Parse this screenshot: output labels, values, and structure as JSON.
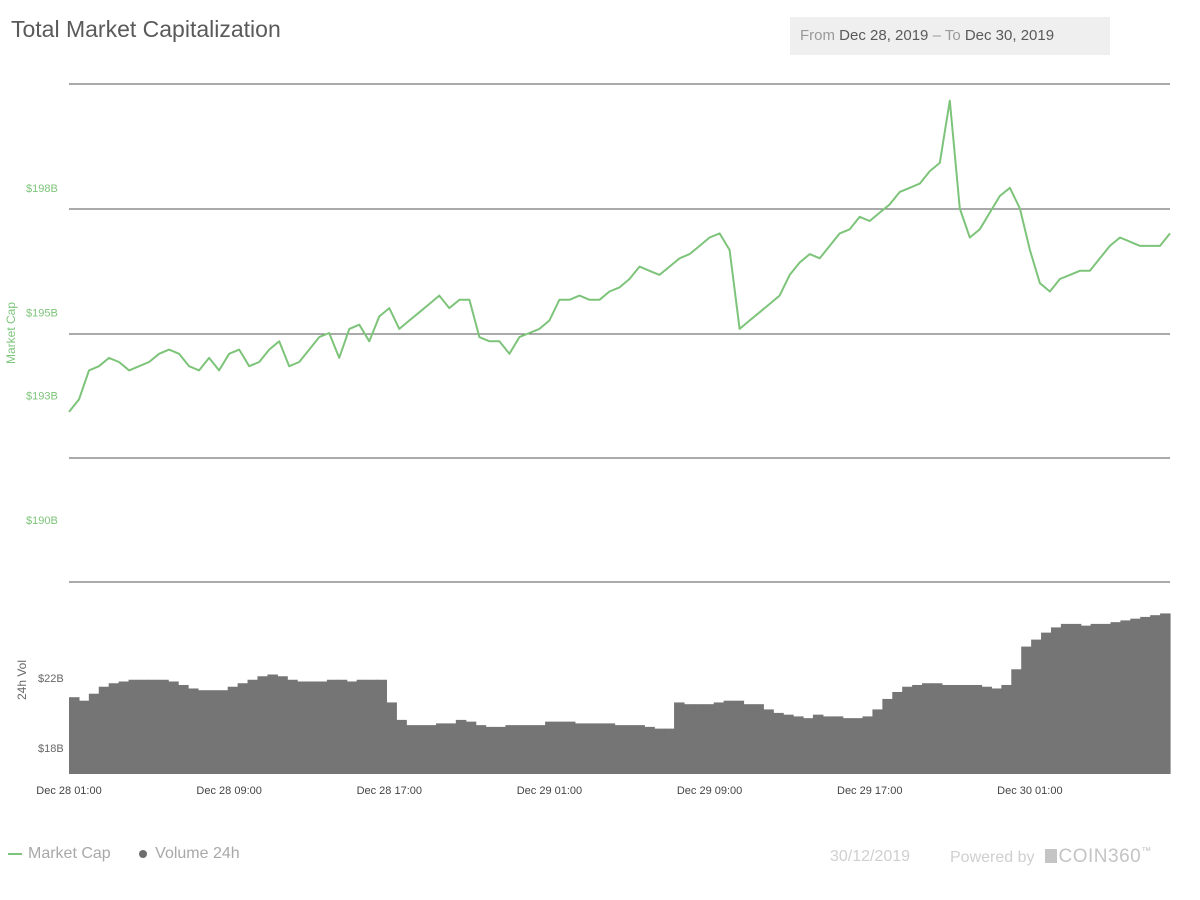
{
  "header": {
    "title": "Total Market Capitalization",
    "from_label": "From",
    "from_value": "Dec 28, 2019",
    "separator": "–",
    "to_label": "To",
    "to_value": "Dec 30, 2019"
  },
  "footer": {
    "date": "30/12/2019",
    "powered_by": "Powered by",
    "brand": "COIN360",
    "tm": "™"
  },
  "colors": {
    "market_cap_line": "#7dc47a",
    "volume_bars": "#757575",
    "gridline": "#555555",
    "axis_label_cap": "#7dc47a",
    "axis_label_vol": "#666666"
  },
  "chart_data": [
    {
      "type": "line",
      "title": "Total Market Capitalization",
      "ylabel": "Market Cap",
      "yticks": [
        {
          "value": 190,
          "label": "$190B"
        },
        {
          "value": 193,
          "label": "$193B"
        },
        {
          "value": 195,
          "label": "$195B"
        },
        {
          "value": 198,
          "label": "$198B"
        }
      ],
      "ylim": [
        188.5,
        200.5
      ],
      "grid": true,
      "xticks": [
        {
          "t": 0,
          "label": "Dec 28 01:00"
        },
        {
          "t": 8,
          "label": "Dec 28 09:00"
        },
        {
          "t": 16,
          "label": "Dec 28 17:00"
        },
        {
          "t": 24,
          "label": "Dec 29 01:00"
        },
        {
          "t": 32,
          "label": "Dec 29 09:00"
        },
        {
          "t": 40,
          "label": "Dec 29 17:00"
        },
        {
          "t": 48,
          "label": "Dec 30 01:00"
        }
      ],
      "x_hours_after_dec28_0100": [
        0,
        0.5,
        1,
        1.5,
        2,
        2.5,
        3,
        3.5,
        4,
        4.5,
        5,
        5.5,
        6,
        6.5,
        7,
        7.5,
        8,
        8.5,
        9,
        9.5,
        10,
        10.5,
        11,
        11.5,
        12,
        12.5,
        13,
        13.5,
        14,
        14.5,
        15,
        15.5,
        16,
        16.5,
        17,
        17.5,
        18,
        18.5,
        19,
        19.5,
        20,
        20.5,
        21,
        21.5,
        22,
        22.5,
        23,
        23.5,
        24,
        24.5,
        25,
        25.5,
        26,
        26.5,
        27,
        27.5,
        28,
        28.5,
        29,
        29.5,
        30,
        30.5,
        31,
        31.5,
        32,
        32.5,
        33,
        33.5,
        34,
        34.5,
        35,
        35.5,
        36,
        36.5,
        37,
        37.5,
        38,
        38.5,
        39,
        39.5,
        40,
        40.5,
        41,
        41.5,
        42,
        42.5,
        43,
        43.5,
        44,
        44.5,
        45,
        45.5,
        46,
        46.5,
        47,
        47.5,
        48,
        48.5,
        49,
        49.5,
        50,
        50.5,
        51,
        51.5,
        52,
        52.5,
        53,
        53.5,
        54,
        54.5,
        55
      ],
      "values": [
        192.6,
        192.9,
        193.6,
        193.7,
        193.9,
        193.8,
        193.6,
        193.7,
        193.8,
        194.0,
        194.1,
        194.0,
        193.7,
        193.6,
        193.9,
        193.6,
        194.0,
        194.1,
        193.7,
        193.8,
        194.1,
        194.3,
        193.7,
        193.8,
        194.1,
        194.4,
        194.5,
        193.9,
        194.6,
        194.7,
        194.3,
        194.9,
        195.1,
        194.6,
        194.8,
        195.0,
        195.2,
        195.4,
        195.1,
        195.3,
        195.3,
        194.4,
        194.3,
        194.3,
        194.0,
        194.4,
        194.5,
        194.6,
        194.8,
        195.3,
        195.3,
        195.4,
        195.3,
        195.3,
        195.5,
        195.6,
        195.8,
        196.1,
        196.0,
        195.9,
        196.1,
        196.3,
        196.4,
        196.6,
        196.8,
        196.9,
        196.5,
        194.6,
        194.8,
        195.0,
        195.2,
        195.4,
        195.9,
        196.2,
        196.4,
        196.3,
        196.6,
        196.9,
        197.0,
        197.3,
        197.2,
        197.4,
        197.6,
        197.9,
        198.0,
        198.1,
        198.4,
        198.6,
        200.1,
        197.5,
        196.8,
        197.0,
        197.4,
        197.8,
        198.0,
        197.5,
        196.5,
        195.7,
        195.5,
        195.8,
        195.9,
        196.0,
        196.0,
        196.3,
        196.6,
        196.8,
        196.7,
        196.6,
        196.6,
        196.6,
        196.9
      ]
    },
    {
      "type": "bar",
      "ylabel": "24h Vol",
      "yticks": [
        {
          "value": 18,
          "label": "$18B"
        },
        {
          "value": 22,
          "label": "$22B"
        }
      ],
      "ylim": [
        16.5,
        27.5
      ],
      "values": [
        20.9,
        20.7,
        21.1,
        21.5,
        21.7,
        21.8,
        21.9,
        21.9,
        21.9,
        21.9,
        21.8,
        21.6,
        21.4,
        21.3,
        21.3,
        21.3,
        21.5,
        21.7,
        21.9,
        22.1,
        22.2,
        22.1,
        21.9,
        21.8,
        21.8,
        21.8,
        21.9,
        21.9,
        21.8,
        21.9,
        21.9,
        21.9,
        20.6,
        19.6,
        19.3,
        19.3,
        19.3,
        19.4,
        19.4,
        19.6,
        19.5,
        19.3,
        19.2,
        19.2,
        19.3,
        19.3,
        19.3,
        19.3,
        19.5,
        19.5,
        19.5,
        19.4,
        19.4,
        19.4,
        19.4,
        19.3,
        19.3,
        19.3,
        19.2,
        19.1,
        19.1,
        20.6,
        20.5,
        20.5,
        20.5,
        20.6,
        20.7,
        20.7,
        20.5,
        20.5,
        20.2,
        20.0,
        19.9,
        19.8,
        19.7,
        19.9,
        19.8,
        19.8,
        19.7,
        19.7,
        19.8,
        20.2,
        20.8,
        21.2,
        21.5,
        21.6,
        21.7,
        21.7,
        21.6,
        21.6,
        21.6,
        21.6,
        21.5,
        21.4,
        21.6,
        22.5,
        23.8,
        24.2,
        24.6,
        24.9,
        25.1,
        25.1,
        25.0,
        25.1,
        25.1,
        25.2,
        25.3,
        25.4,
        25.5,
        25.6,
        25.7
      ]
    }
  ],
  "legend": {
    "market_cap": "Market Cap",
    "volume": "Volume 24h"
  }
}
